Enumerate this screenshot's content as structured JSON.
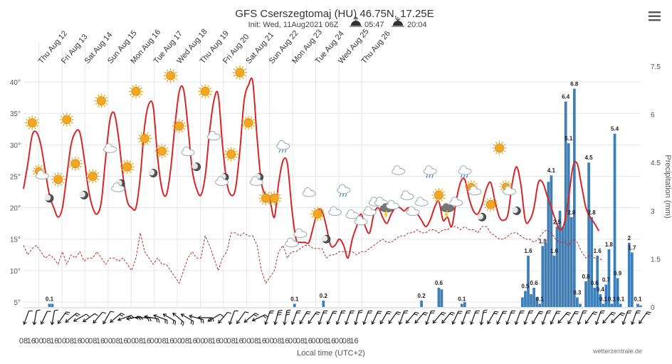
{
  "header": {
    "title": "GFS Cserszegtomaj (HU) 46.75N, 17.25E",
    "init": "Init: Wed, 11Aug2021 06Z",
    "sunrise": "05:47",
    "sunset": "20:04",
    "sunrise_icon": "sunrise-icon",
    "sunset_icon": "sunset-icon"
  },
  "menu": {
    "icon": "hamburger-menu-icon"
  },
  "credit": "wetterzentrale.de",
  "colors": {
    "temp": "#d62728",
    "dew": "#b03030",
    "precip": "#3d7fb8",
    "grid": "#e6e6e6",
    "sun": "#f5a623",
    "cloud": "#9aa7b4"
  },
  "chart_data": {
    "type": "bar",
    "xlabel": "Local time (UTC+2)",
    "ylabel_right": "Precipitation (mm)",
    "left_axis": {
      "ticks": [
        "40°",
        "35°",
        "30°",
        "25°",
        "20°",
        "15°",
        "10°",
        "5°"
      ],
      "values": [
        40,
        35,
        30,
        25,
        20,
        15,
        10,
        5
      ],
      "range": [
        4.2,
        42.5
      ]
    },
    "right_axis": {
      "ticks": [
        "7.5",
        "6",
        "4.5",
        "3",
        "1.5",
        "0"
      ],
      "values": [
        7.5,
        6,
        4.5,
        3,
        1.5,
        0
      ],
      "range": [
        0,
        7.5
      ]
    },
    "grid": true,
    "day_labels": [
      "Thu Aug 12",
      "Fri Aug 13",
      "Sat Aug 14",
      "Sun Aug 15",
      "Mon Aug 16",
      "Tue Aug 17",
      "Wed Aug 18",
      "Thu Aug 19",
      "Fri Aug 20",
      "Sat Aug 21",
      "Sun Aug 22",
      "Mon Aug 23",
      "Tue Aug 24",
      "Wed Aug 25",
      "Thu Aug 26"
    ],
    "hour_labels": [
      "08",
      "16",
      "00",
      "08",
      "16",
      "00",
      "08",
      "16",
      "00",
      "08",
      "16",
      "00",
      "08",
      "16",
      "00",
      "08",
      "16",
      "00",
      "08",
      "16",
      "00",
      "08",
      "16",
      "00",
      "08",
      "16",
      "00",
      "08",
      "16",
      "00",
      "08",
      "16",
      "00",
      "08",
      "16",
      "00",
      "08",
      "16",
      "00",
      "08",
      "16",
      "00",
      "08",
      "16"
    ],
    "x_start_hour": 8,
    "x_step_hours": 3,
    "temperature": [
      23,
      27,
      31.5,
      32,
      30,
      26,
      22,
      20,
      18.5,
      20,
      25,
      30,
      32,
      32,
      28,
      23,
      20,
      19,
      21,
      28,
      34,
      35,
      31,
      25,
      21,
      20,
      20,
      25,
      33,
      36.5,
      36,
      28,
      23,
      22,
      26,
      33,
      38.5,
      38.8,
      33,
      26,
      23,
      22,
      25,
      32,
      37,
      38,
      30,
      24,
      22,
      23,
      29,
      37,
      39.5,
      40,
      31,
      24,
      22,
      21,
      18.5,
      24,
      27.5,
      27,
      20,
      15,
      14.5,
      14.5,
      14.5,
      17,
      19.5,
      19.5,
      17,
      14,
      14,
      15,
      14,
      12,
      15,
      17,
      19,
      17,
      16,
      19,
      20,
      18.5,
      17.5,
      19,
      20,
      20,
      19.5,
      20,
      19,
      19,
      18,
      17,
      18,
      20,
      21,
      18,
      18.5,
      17,
      21,
      24,
      24.5,
      21.5,
      19.5,
      19,
      20.5,
      23,
      24,
      21,
      18.5,
      18,
      19,
      24,
      26.5,
      23.5,
      18,
      18,
      20,
      24,
      24,
      22,
      20,
      18,
      16.5,
      17.5,
      21.5,
      26.5,
      27,
      23.5,
      20,
      18.5,
      17.5,
      16.3
    ],
    "dewpoint": [
      14,
      12.5,
      13.5,
      14,
      13,
      12,
      12.5,
      12,
      11,
      13,
      11,
      12.5,
      12,
      13,
      11.5,
      12,
      12,
      13,
      12,
      11,
      12,
      12,
      11.5,
      12,
      11,
      10,
      12,
      16,
      13,
      12,
      11,
      12,
      11,
      11,
      10,
      9,
      8,
      10,
      12,
      13,
      12,
      12,
      15.5,
      14,
      12,
      10,
      12,
      13,
      16,
      16,
      15.5,
      16,
      15.5,
      15.5,
      14,
      10,
      8,
      9,
      10,
      13,
      14,
      12,
      13,
      13,
      13.5,
      14,
      14,
      13.5,
      13.5,
      13.5,
      12,
      12.5,
      12.5,
      13,
      13,
      13,
      13,
      12.5,
      13,
      13,
      13.5,
      14,
      14.5,
      15,
      14.5,
      14.5,
      15,
      15.5,
      15.5,
      16,
      16,
      16.5,
      16,
      16,
      16.5,
      16.5,
      16,
      16.5,
      16.5,
      17,
      17,
      16.5,
      17,
      16.5,
      16.5,
      16,
      17,
      17,
      16,
      15.5,
      15,
      15,
      15.5,
      16,
      16,
      15.5,
      15,
      15,
      14.5,
      15,
      16,
      16.5,
      16,
      15,
      14.5,
      14.5,
      14,
      15,
      14.5,
      13,
      12,
      12.5,
      12,
      12,
      11.5
    ],
    "precip_bars": [
      {
        "i": 9,
        "v": 0.1
      },
      {
        "i": 10,
        "v": 0.1
      },
      {
        "i": 94,
        "v": 0.1
      },
      {
        "i": 104,
        "v": 0.2
      },
      {
        "i": 138,
        "v": 0.2
      },
      {
        "i": 144,
        "v": 0.6
      },
      {
        "i": 145,
        "v": 0.55
      },
      {
        "i": 152,
        "v": 0.1
      },
      {
        "i": 153,
        "v": 0.15
      },
      {
        "i": 173,
        "v": 0.3
      },
      {
        "i": 174,
        "v": 0.5
      },
      {
        "i": 175,
        "v": 1.6
      },
      {
        "i": 176,
        "v": 0.4
      },
      {
        "i": 177,
        "v": 0.6
      },
      {
        "i": 178,
        "v": 0.3
      },
      {
        "i": 179,
        "v": 0.1
      },
      {
        "i": 180,
        "v": 1.9
      },
      {
        "i": 181,
        "v": 2.0
      },
      {
        "i": 182,
        "v": 3.9
      },
      {
        "i": 183,
        "v": 4.1
      },
      {
        "i": 184,
        "v": 1.6
      },
      {
        "i": 185,
        "v": 2.5
      },
      {
        "i": 186,
        "v": 3.0
      },
      {
        "i": 187,
        "v": 2.5
      },
      {
        "i": 188,
        "v": 6.4
      },
      {
        "i": 189,
        "v": 5.1
      },
      {
        "i": 190,
        "v": 2.8
      },
      {
        "i": 191,
        "v": 6.8
      },
      {
        "i": 192,
        "v": 0.3
      },
      {
        "i": 193,
        "v": 0.1
      },
      {
        "i": 195,
        "v": 0.8
      },
      {
        "i": 196,
        "v": 4.5
      },
      {
        "i": 197,
        "v": 2.8
      },
      {
        "i": 198,
        "v": 0.6
      },
      {
        "i": 199,
        "v": 1.6
      },
      {
        "i": 200,
        "v": 0.4
      },
      {
        "i": 201,
        "v": 0.1
      },
      {
        "i": 202,
        "v": 0.7
      },
      {
        "i": 203,
        "v": 1.8
      },
      {
        "i": 204,
        "v": 0.1
      },
      {
        "i": 205,
        "v": 5.4
      },
      {
        "i": 206,
        "v": 0.9
      },
      {
        "i": 207,
        "v": 0.1
      },
      {
        "i": 210,
        "v": 2.0
      },
      {
        "i": 211,
        "v": 1.7
      },
      {
        "i": 213,
        "v": 0.1
      },
      {
        "i": 214,
        "v": 0.05
      }
    ],
    "weather_icons": [
      {
        "i": 3,
        "t": "sun",
        "y": 33.5
      },
      {
        "i": 6,
        "t": "sun-cloud",
        "y": 25.5
      },
      {
        "i": 9,
        "t": "moon",
        "y": 21.5
      },
      {
        "i": 12,
        "t": "sun",
        "y": 24.5
      },
      {
        "i": 15,
        "t": "sun",
        "y": 34
      },
      {
        "i": 18,
        "t": "sun",
        "y": 27
      },
      {
        "i": 21,
        "t": "moon",
        "y": 22
      },
      {
        "i": 24,
        "t": "sun",
        "y": 25
      },
      {
        "i": 27,
        "t": "sun",
        "y": 37
      },
      {
        "i": 30,
        "t": "cloud",
        "y": 29.5
      },
      {
        "i": 33,
        "t": "cloud-moon",
        "y": 23.5
      },
      {
        "i": 36,
        "t": "sun",
        "y": 26.5
      },
      {
        "i": 39,
        "t": "sun",
        "y": 38.5
      },
      {
        "i": 42,
        "t": "sun",
        "y": 31
      },
      {
        "i": 45,
        "t": "moon",
        "y": 25.5
      },
      {
        "i": 48,
        "t": "sun",
        "y": 29
      },
      {
        "i": 51,
        "t": "sun",
        "y": 41
      },
      {
        "i": 54,
        "t": "sun",
        "y": 33
      },
      {
        "i": 57,
        "t": "cloud",
        "y": 29
      },
      {
        "i": 60,
        "t": "moon",
        "y": 26.5
      },
      {
        "i": 63,
        "t": "sun",
        "y": 38.5
      },
      {
        "i": 66,
        "t": "cloud",
        "y": 31.5
      },
      {
        "i": 69,
        "t": "cloud-moon",
        "y": 24.5
      },
      {
        "i": 72,
        "t": "sun",
        "y": 28.5
      },
      {
        "i": 75,
        "t": "sun",
        "y": 41.5
      },
      {
        "i": 78,
        "t": "sun",
        "y": 33.5
      },
      {
        "i": 81,
        "t": "cloud-moon",
        "y": 24.5
      },
      {
        "i": 84,
        "t": "sun",
        "y": 21.5
      },
      {
        "i": 87,
        "t": "sun",
        "y": 21.5
      },
      {
        "i": 90,
        "t": "rain",
        "y": 30
      },
      {
        "i": 93,
        "t": "cloud",
        "y": 14.5
      },
      {
        "i": 96,
        "t": "cloud",
        "y": 16
      },
      {
        "i": 99,
        "t": "cloud",
        "y": 22.5
      },
      {
        "i": 102,
        "t": "sun",
        "y": 19
      },
      {
        "i": 105,
        "t": "moon",
        "y": 15
      },
      {
        "i": 108,
        "t": "cloud",
        "y": 19.5
      },
      {
        "i": 111,
        "t": "rain",
        "y": 23
      },
      {
        "i": 114,
        "t": "cloud",
        "y": 19
      },
      {
        "i": 117,
        "t": "cloud",
        "y": 18
      },
      {
        "i": 120,
        "t": "cloud",
        "y": 19.5
      },
      {
        "i": 122,
        "t": "cloud",
        "y": 21
      },
      {
        "i": 124,
        "t": "cloud",
        "y": 21
      },
      {
        "i": 126,
        "t": "thunder",
        "y": 20
      },
      {
        "i": 128,
        "t": "cloud",
        "y": 20.5
      },
      {
        "i": 130,
        "t": "cloud",
        "y": 26
      },
      {
        "i": 133,
        "t": "cloud",
        "y": 22
      },
      {
        "i": 135,
        "t": "cloud",
        "y": 19.5
      },
      {
        "i": 138,
        "t": "cloud",
        "y": 21
      },
      {
        "i": 141,
        "t": "rain",
        "y": 26
      },
      {
        "i": 144,
        "t": "sun",
        "y": 22
      },
      {
        "i": 147,
        "t": "thunder",
        "y": 20
      },
      {
        "i": 150,
        "t": "cloud",
        "y": 21
      },
      {
        "i": 153,
        "t": "rain",
        "y": 26
      },
      {
        "i": 156,
        "t": "sun-cloud",
        "y": 23
      },
      {
        "i": 159,
        "t": "moon",
        "y": 18.5
      },
      {
        "i": 162,
        "t": "sun",
        "y": 20.5
      },
      {
        "i": 165,
        "t": "sun",
        "y": 29.5
      },
      {
        "i": 168,
        "t": "sun-cloud",
        "y": 23
      },
      {
        "i": 171,
        "t": "moon",
        "y": 19.5
      }
    ],
    "wind_dirs": [
      200,
      190,
      205,
      190,
      215,
      230,
      240,
      235,
      220,
      210,
      230,
      250,
      260,
      270,
      280,
      290,
      300,
      310,
      300,
      285,
      270,
      240,
      220,
      200,
      215,
      230,
      245,
      200,
      195,
      190,
      200,
      210,
      215,
      200,
      205,
      200,
      200,
      195,
      200,
      205,
      210,
      215,
      200,
      220,
      220,
      200,
      220,
      220,
      205,
      200,
      200,
      190,
      210,
      205,
      200,
      200,
      200,
      210,
      200,
      205,
      220,
      210,
      200,
      215,
      200,
      220,
      225,
      200,
      200,
      215
    ],
    "wind_speeds": [
      1,
      1,
      1,
      1,
      2,
      2,
      1,
      1,
      1,
      1,
      2,
      2,
      2,
      2,
      2,
      2,
      2,
      2,
      2,
      2,
      2,
      1,
      1,
      1,
      1,
      2,
      2,
      2,
      3,
      3,
      2,
      2,
      2,
      2,
      2,
      2,
      2,
      2,
      2,
      2,
      2,
      2,
      2,
      2,
      2,
      2,
      2,
      2,
      2,
      2,
      2,
      2,
      2,
      2,
      2,
      2,
      2,
      2,
      2,
      2,
      2,
      2,
      2,
      2,
      2,
      2,
      2,
      2,
      2,
      2
    ]
  }
}
